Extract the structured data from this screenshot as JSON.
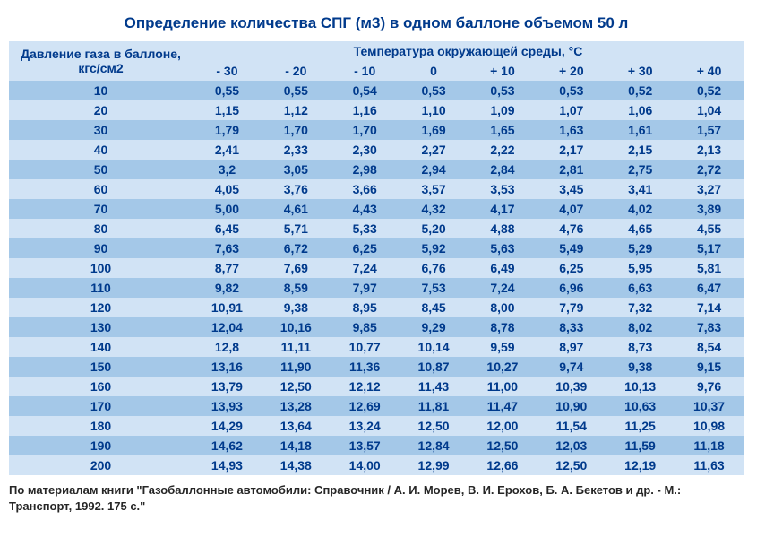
{
  "title": "Определение количества СПГ (м3) в одном баллоне объемом 50 л",
  "pressure_header": "Давление газа в баллоне, кгс/см2",
  "temp_header": "Температура окружающей среды, °С",
  "colors": {
    "header_bg": "#d1e3f5",
    "band_dark": "#a4c8e8",
    "band_light": "#d1e3f5",
    "text": "#003a8c"
  },
  "temp_columns": [
    "- 30",
    "- 20",
    "- 10",
    "0",
    "+ 10",
    "+ 20",
    "+ 30",
    "+ 40"
  ],
  "pressures": [
    "10",
    "20",
    "30",
    "40",
    "50",
    "60",
    "70",
    "80",
    "90",
    "100",
    "110",
    "120",
    "130",
    "140",
    "150",
    "160",
    "170",
    "180",
    "190",
    "200"
  ],
  "rows": [
    [
      "0,55",
      "0,55",
      "0,54",
      "0,53",
      "0,53",
      "0,53",
      "0,52",
      "0,52"
    ],
    [
      "1,15",
      "1,12",
      "1,16",
      "1,10",
      "1,09",
      "1,07",
      "1,06",
      "1,04"
    ],
    [
      "1,79",
      "1,70",
      "1,70",
      "1,69",
      "1,65",
      "1,63",
      "1,61",
      "1,57"
    ],
    [
      "2,41",
      "2,33",
      "2,30",
      "2,27",
      "2,22",
      "2,17",
      "2,15",
      "2,13"
    ],
    [
      "3,2",
      "3,05",
      "2,98",
      "2,94",
      "2,84",
      "2,81",
      "2,75",
      "2,72"
    ],
    [
      "4,05",
      "3,76",
      "3,66",
      "3,57",
      "3,53",
      "3,45",
      "3,41",
      "3,27"
    ],
    [
      "5,00",
      "4,61",
      "4,43",
      "4,32",
      "4,17",
      "4,07",
      "4,02",
      "3,89"
    ],
    [
      "6,45",
      "5,71",
      "5,33",
      "5,20",
      "4,88",
      "4,76",
      "4,65",
      "4,55"
    ],
    [
      "7,63",
      "6,72",
      "6,25",
      "5,92",
      "5,63",
      "5,49",
      "5,29",
      "5,17"
    ],
    [
      "8,77",
      "7,69",
      "7,24",
      "6,76",
      "6,49",
      "6,25",
      "5,95",
      "5,81"
    ],
    [
      "9,82",
      "8,59",
      "7,97",
      "7,53",
      "7,24",
      "6,96",
      "6,63",
      "6,47"
    ],
    [
      "10,91",
      "9,38",
      "8,95",
      "8,45",
      "8,00",
      "7,79",
      "7,32",
      "7,14"
    ],
    [
      "12,04",
      "10,16",
      "9,85",
      "9,29",
      "8,78",
      "8,33",
      "8,02",
      "7,83"
    ],
    [
      "12,8",
      "11,11",
      "10,77",
      "10,14",
      "9,59",
      "8,97",
      "8,73",
      "8,54"
    ],
    [
      "13,16",
      "11,90",
      "11,36",
      "10,87",
      "10,27",
      "9,74",
      "9,38",
      "9,15"
    ],
    [
      "13,79",
      "12,50",
      "12,12",
      "11,43",
      "11,00",
      "10,39",
      "10,13",
      "9,76"
    ],
    [
      "13,93",
      "13,28",
      "12,69",
      "11,81",
      "11,47",
      "10,90",
      "10,63",
      "10,37"
    ],
    [
      "14,29",
      "13,64",
      "13,24",
      "12,50",
      "12,00",
      "11,54",
      "11,25",
      "10,98"
    ],
    [
      "14,62",
      "14,18",
      "13,57",
      "12,84",
      "12,50",
      "12,03",
      "11,59",
      "11,18"
    ],
    [
      "14,93",
      "14,38",
      "14,00",
      "12,99",
      "12,66",
      "12,50",
      "12,19",
      "11,63"
    ]
  ],
  "source": "По материалам книги \"Газобаллонные автомобили: Справочник / А. И. Морев, В. И. Ерохов, Б. А. Бекетов и др. - М.: Транспорт, 1992. 175 с.\""
}
